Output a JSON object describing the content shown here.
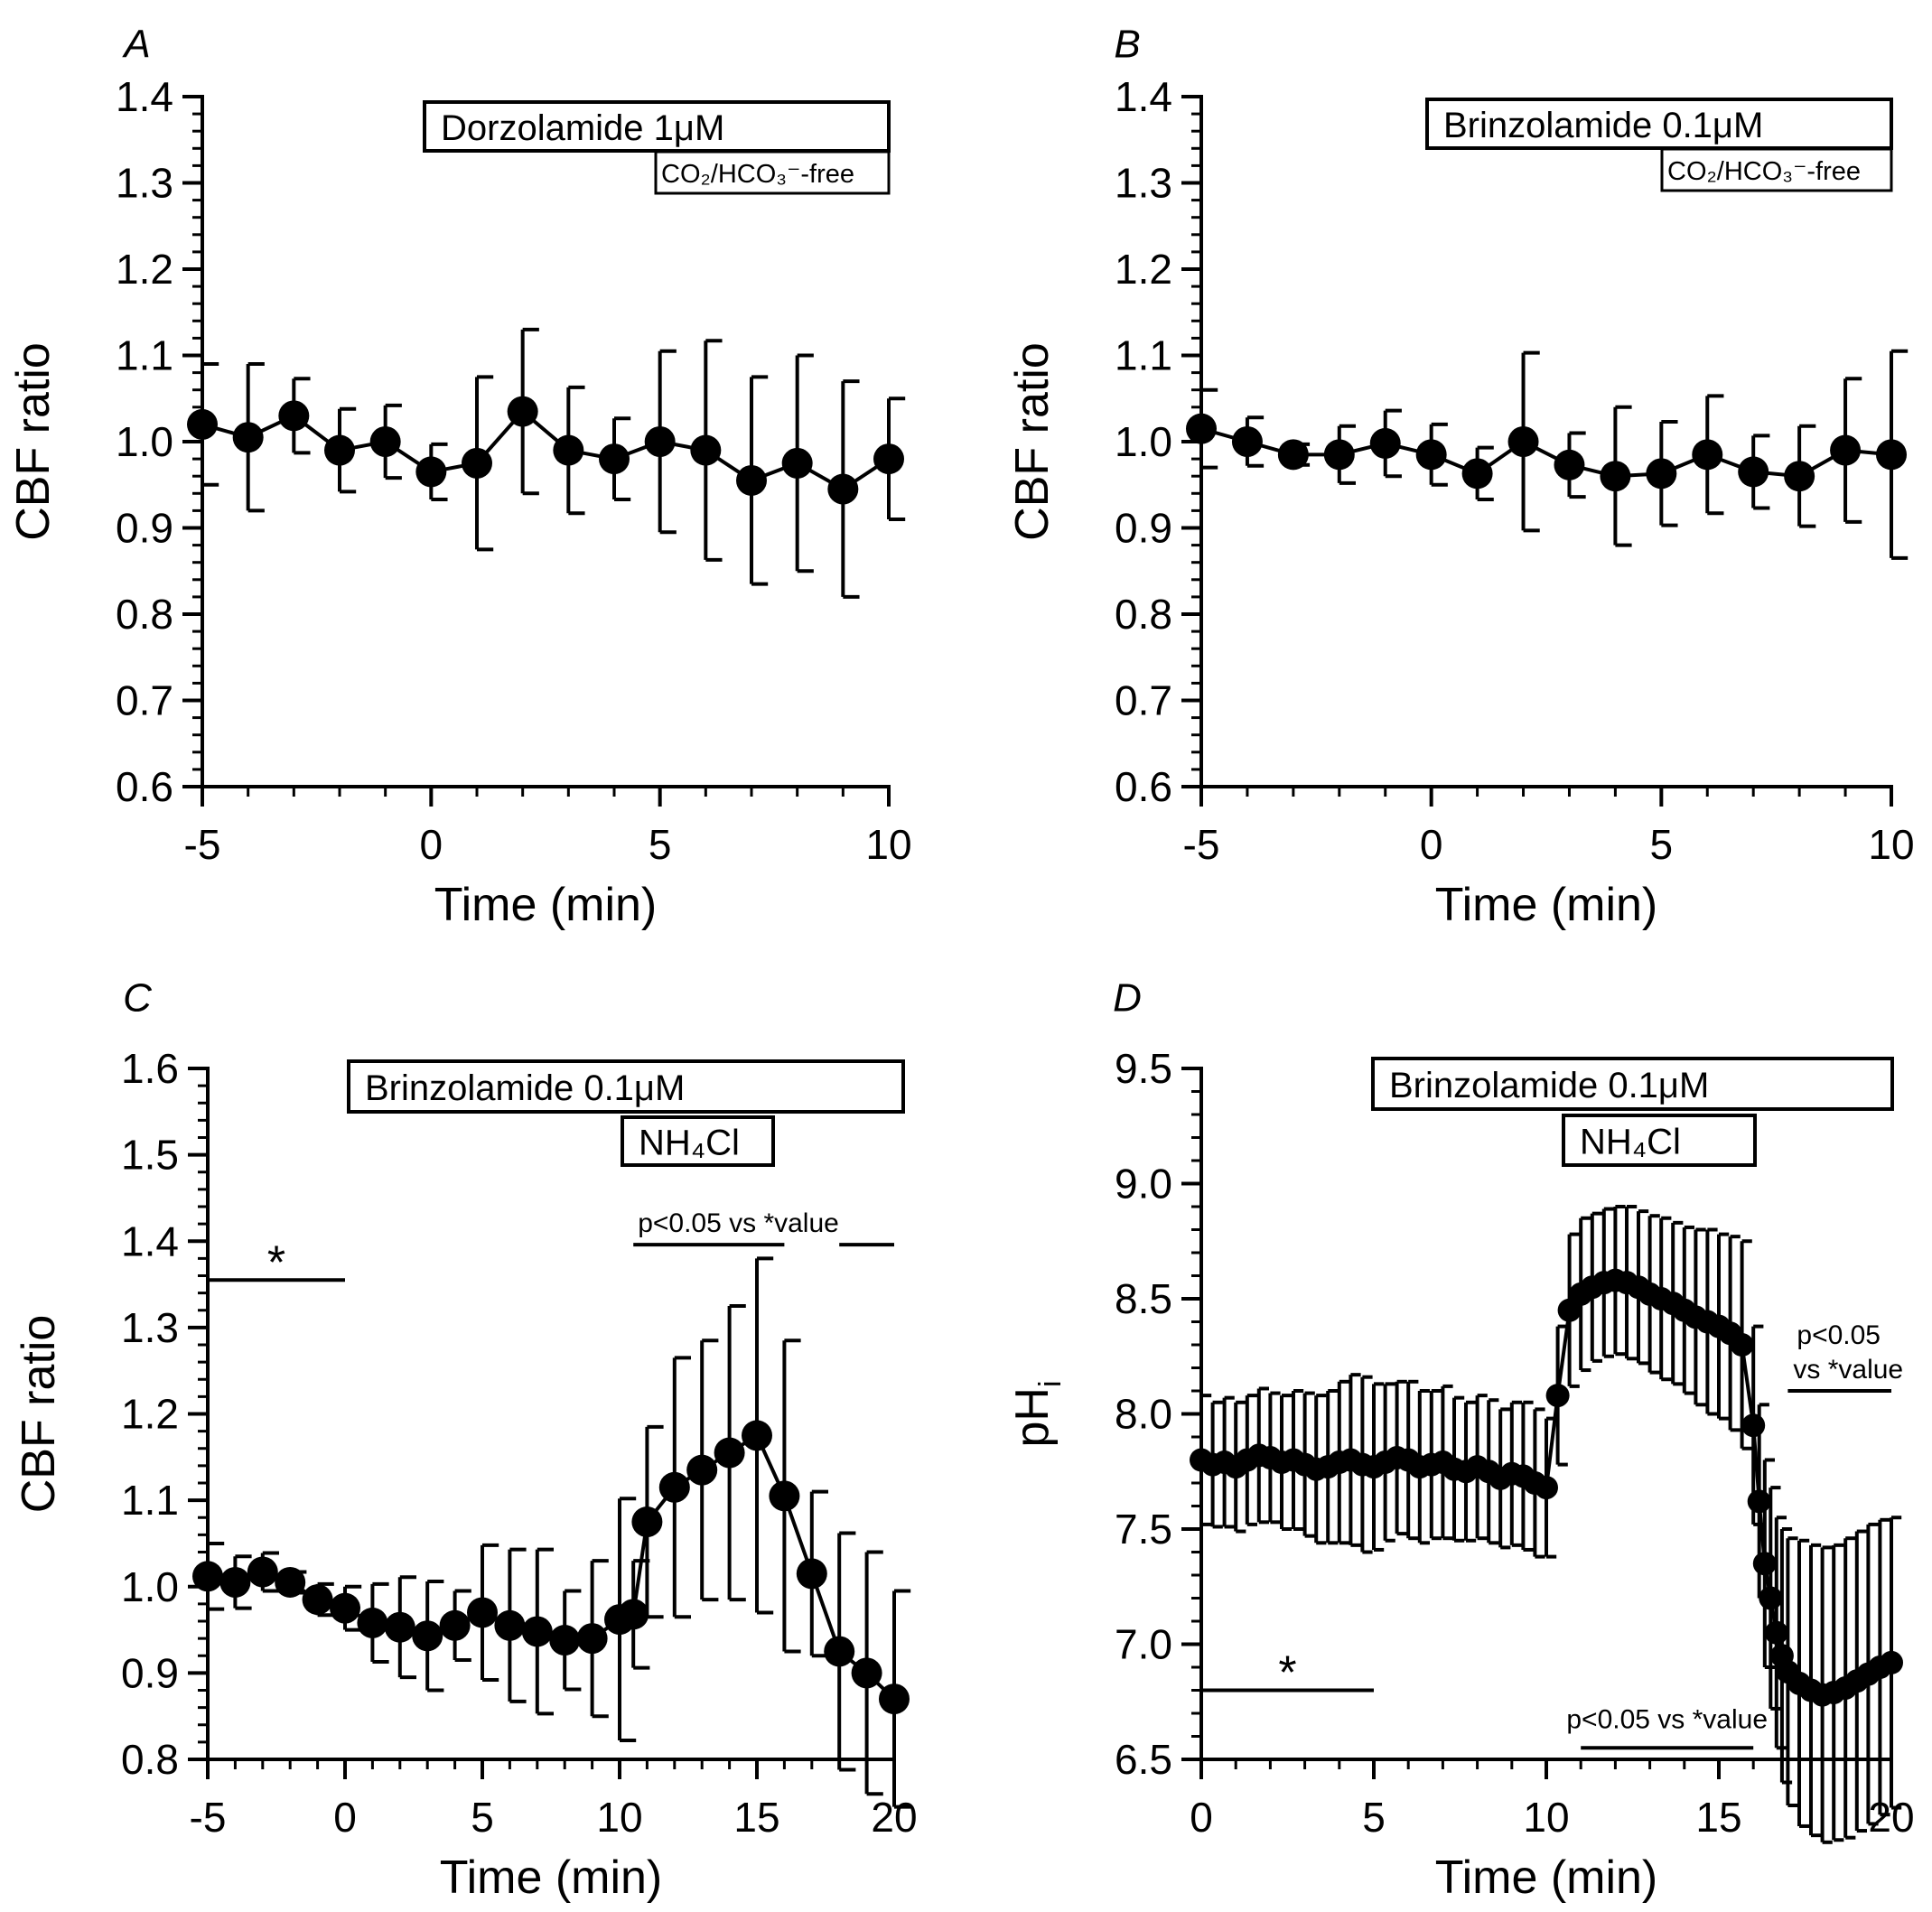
{
  "chart_data": [
    {
      "panel": "A",
      "type": "scatter",
      "xlabel": "Time (min)",
      "ylabel": "CBF ratio",
      "xlim": [
        -5,
        10
      ],
      "ylim": [
        0.6,
        1.4
      ],
      "xticks": [
        -5,
        0,
        5,
        10
      ],
      "yticks": [
        0.6,
        0.7,
        0.8,
        0.9,
        1.0,
        1.1,
        1.2,
        1.3,
        1.4
      ],
      "yformat": 1,
      "treatments": [
        {
          "text": "Dorzolamide 1μM",
          "sub": "",
          "x0": 0,
          "x1": 10
        },
        {
          "text": "CO₂/HCO₃⁻-free",
          "sub": "small",
          "x0": 5,
          "x1": 10
        }
      ],
      "annotations": [],
      "series": [
        {
          "x": [
            -5,
            -4,
            -3,
            -2,
            -1,
            0,
            1,
            2,
            3,
            4,
            5,
            6,
            7,
            8,
            9,
            10
          ],
          "y": [
            1.02,
            1.005,
            1.03,
            0.99,
            1.0,
            0.965,
            0.975,
            1.035,
            0.99,
            0.98,
            1.0,
            0.99,
            0.955,
            0.975,
            0.945,
            0.98
          ],
          "err": [
            0.07,
            0.085,
            0.043,
            0.048,
            0.042,
            0.032,
            0.1,
            0.095,
            0.073,
            0.047,
            0.105,
            0.127,
            0.12,
            0.125,
            0.125,
            0.07
          ]
        }
      ]
    },
    {
      "panel": "B",
      "type": "scatter",
      "xlabel": "Time (min)",
      "ylabel": "CBF ratio",
      "xlim": [
        -5,
        10
      ],
      "ylim": [
        0.6,
        1.4
      ],
      "xticks": [
        -5,
        0,
        5,
        10
      ],
      "yticks": [
        0.6,
        0.7,
        0.8,
        0.9,
        1.0,
        1.1,
        1.2,
        1.3,
        1.4
      ],
      "yformat": 1,
      "treatments": [
        {
          "text": "Brinzolamide 0.1μM",
          "sub": "",
          "x0": 0,
          "x1": 10
        },
        {
          "text": "CO₂/HCO₃⁻-free",
          "sub": "small",
          "x0": 5,
          "x1": 10
        }
      ],
      "annotations": [],
      "series": [
        {
          "x": [
            -5,
            -4,
            -3,
            -2,
            -1,
            0,
            1,
            2,
            3,
            4,
            5,
            6,
            7,
            8,
            9,
            10
          ],
          "y": [
            1.015,
            1.0,
            0.985,
            0.985,
            0.998,
            0.985,
            0.963,
            1.0,
            0.973,
            0.96,
            0.963,
            0.985,
            0.965,
            0.96,
            0.99,
            0.985
          ],
          "err": [
            0.045,
            0.028,
            0.012,
            0.033,
            0.038,
            0.035,
            0.03,
            0.103,
            0.037,
            0.08,
            0.06,
            0.068,
            0.042,
            0.058,
            0.083,
            0.12
          ]
        }
      ]
    },
    {
      "panel": "C",
      "type": "scatter",
      "xlabel": "Time (min)",
      "ylabel": "CBF ratio",
      "xlim": [
        -5,
        20
      ],
      "ylim": [
        0.8,
        1.6
      ],
      "xticks": [
        -5,
        0,
        5,
        10,
        15,
        20
      ],
      "yticks": [
        0.8,
        0.9,
        1.0,
        1.1,
        1.2,
        1.3,
        1.4,
        1.5,
        1.6
      ],
      "yformat": 1,
      "treatments": [
        {
          "text": "Brinzolamide 0.1μM",
          "sub": "",
          "x0": 0,
          "x1": 20
        },
        {
          "text": "NH₄Cl",
          "sub": "",
          "x0": 10,
          "x1": 15
        }
      ],
      "annotations": [
        {
          "text": "*",
          "bars": [
            [
              -5,
              0
            ]
          ],
          "y": 1.355
        },
        {
          "text": "p<0.05 vs *value",
          "bars": [
            [
              10.5,
              16
            ],
            [
              18,
              20
            ]
          ],
          "y": 1.396
        }
      ],
      "series": [
        {
          "x": [
            -5,
            -4,
            -3,
            -2,
            -1,
            0,
            1,
            2,
            3,
            4,
            5,
            6,
            7,
            8,
            9,
            10,
            10.5,
            11,
            12,
            13,
            14,
            15,
            16,
            17,
            18,
            19,
            20
          ],
          "y": [
            1.012,
            1.005,
            1.017,
            1.005,
            0.985,
            0.975,
            0.958,
            0.953,
            0.943,
            0.955,
            0.97,
            0.955,
            0.948,
            0.938,
            0.94,
            0.962,
            0.968,
            1.075,
            1.115,
            1.135,
            1.155,
            1.175,
            1.105,
            1.015,
            0.925,
            0.9,
            0.87
          ],
          "err": [
            0.038,
            0.03,
            0.022,
            0.012,
            0.018,
            0.025,
            0.045,
            0.058,
            0.063,
            0.04,
            0.078,
            0.088,
            0.095,
            0.057,
            0.09,
            0.14,
            0.062,
            0.11,
            0.15,
            0.15,
            0.17,
            0.205,
            0.18,
            0.095,
            0.137,
            0.14,
            0.125
          ]
        }
      ]
    },
    {
      "panel": "D",
      "type": "scatter",
      "xlabel": "Time (min)",
      "ylabel": "pH",
      "ylabel_sub": "i",
      "xlim": [
        0,
        20
      ],
      "ylim": [
        6.5,
        9.5
      ],
      "xticks": [
        0,
        5,
        10,
        15,
        20
      ],
      "yticks": [
        6.5,
        7.0,
        7.5,
        8.0,
        8.5,
        9.0,
        9.5
      ],
      "yformat": 1,
      "treatments": [
        {
          "text": "Brinzolamide 0.1μM",
          "sub": "",
          "x0": 5,
          "x1": 20
        },
        {
          "text": "NH₄Cl",
          "sub": "",
          "x0": 10.5,
          "x1": 16
        }
      ],
      "annotations": [
        {
          "text": "*",
          "bars": [
            [
              0,
              5
            ]
          ],
          "y": 6.8
        },
        {
          "text": "p<0.05 vs *value",
          "bars": [
            [
              11,
              16
            ]
          ],
          "y": 6.55
        },
        {
          "text": "p<0.05",
          "text2": "vs *value",
          "bars": [
            [
              17,
              20
            ]
          ],
          "y": 8.1
        }
      ],
      "series": [
        {
          "x": [
            0,
            0.33,
            0.67,
            1,
            1.33,
            1.67,
            2,
            2.33,
            2.67,
            3,
            3.33,
            3.67,
            4,
            4.33,
            4.67,
            5,
            5.33,
            5.67,
            6,
            6.33,
            6.67,
            7,
            7.33,
            7.67,
            8,
            8.33,
            8.67,
            9,
            9.33,
            9.67,
            10,
            10.33,
            10.67,
            11,
            11.33,
            11.67,
            12,
            12.33,
            12.67,
            13,
            13.33,
            13.67,
            14,
            14.33,
            14.67,
            15,
            15.33,
            15.67,
            16,
            16.17,
            16.33,
            16.5,
            16.67,
            16.83,
            17,
            17.33,
            17.67,
            18,
            18.33,
            18.67,
            19,
            19.33,
            19.67,
            20
          ],
          "y": [
            7.8,
            7.78,
            7.79,
            7.77,
            7.8,
            7.82,
            7.81,
            7.79,
            7.8,
            7.78,
            7.76,
            7.77,
            7.79,
            7.8,
            7.78,
            7.77,
            7.79,
            7.81,
            7.8,
            7.77,
            7.78,
            7.79,
            7.76,
            7.75,
            7.77,
            7.75,
            7.72,
            7.74,
            7.73,
            7.7,
            7.68,
            8.08,
            8.45,
            8.52,
            8.55,
            8.57,
            8.58,
            8.57,
            8.55,
            8.52,
            8.5,
            8.48,
            8.45,
            8.42,
            8.4,
            8.38,
            8.35,
            8.3,
            7.95,
            7.62,
            7.35,
            7.2,
            7.05,
            6.95,
            6.88,
            6.83,
            6.8,
            6.78,
            6.79,
            6.81,
            6.84,
            6.87,
            6.9,
            6.92
          ],
          "err": [
            0.28,
            0.27,
            0.28,
            0.28,
            0.28,
            0.29,
            0.28,
            0.29,
            0.3,
            0.31,
            0.32,
            0.33,
            0.35,
            0.37,
            0.38,
            0.36,
            0.34,
            0.33,
            0.34,
            0.33,
            0.32,
            0.33,
            0.31,
            0.3,
            0.31,
            0.31,
            0.3,
            0.31,
            0.32,
            0.32,
            0.3,
            0.3,
            0.33,
            0.33,
            0.32,
            0.32,
            0.32,
            0.33,
            0.33,
            0.34,
            0.35,
            0.35,
            0.36,
            0.38,
            0.4,
            0.4,
            0.42,
            0.45,
            0.43,
            0.42,
            0.45,
            0.48,
            0.5,
            0.55,
            0.58,
            0.62,
            0.63,
            0.64,
            0.64,
            0.65,
            0.65,
            0.65,
            0.64,
            0.63
          ]
        }
      ]
    }
  ]
}
